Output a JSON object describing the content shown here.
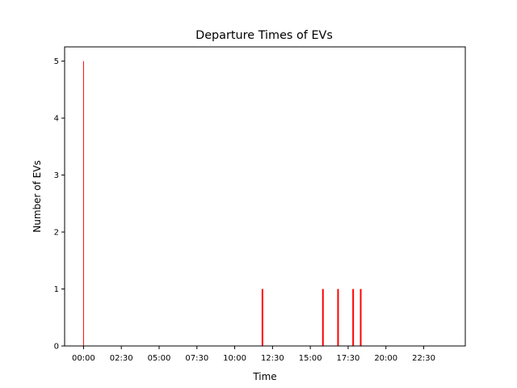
{
  "chart_data": {
    "type": "bar",
    "title": "Departure Times of EVs",
    "xlabel": "Time",
    "ylabel": "Number of EVs",
    "x_unit": "time of day (HH:MM)",
    "xlim": [
      "-01:15",
      "25:15"
    ],
    "ylim": [
      0,
      5.25
    ],
    "x_tick_labels": [
      "00:00",
      "02:30",
      "05:00",
      "07:30",
      "10:00",
      "12:30",
      "15:00",
      "17:30",
      "20:00",
      "22:30"
    ],
    "y_tick_labels": [
      "0",
      "1",
      "2",
      "3",
      "4",
      "5"
    ],
    "bar_color": "#ff0000",
    "grid": false,
    "legend": "none",
    "bars": [
      {
        "time": "00:00",
        "count": 5,
        "thin": true
      },
      {
        "time": "11:50",
        "count": 1
      },
      {
        "time": "15:50",
        "count": 1
      },
      {
        "time": "16:50",
        "count": 1
      },
      {
        "time": "17:50",
        "count": 1
      },
      {
        "time": "18:20",
        "count": 1
      }
    ]
  }
}
